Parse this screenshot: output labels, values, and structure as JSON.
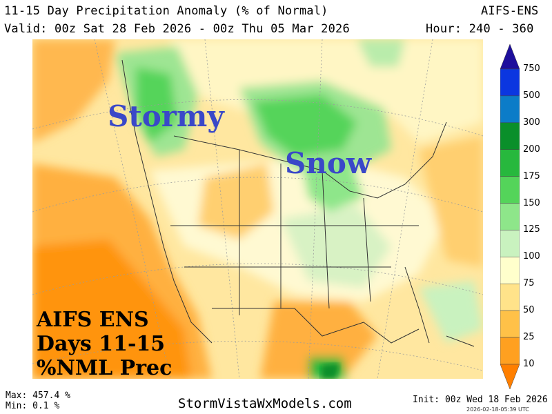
{
  "header": {
    "title": "11-15 Day Precipitation Anomaly (% of Normal)",
    "model": "AIFS-ENS",
    "valid": "Valid: 00z Sat 28 Feb 2026 - 00z Thu 05 Mar 2026",
    "hours": "Hour: 240 - 360"
  },
  "map": {
    "labels": {
      "stormy": "Stormy",
      "snow": "Snow",
      "line1": "AIFS ENS",
      "line2": "Days 11-15",
      "line3": "%NML Prec"
    }
  },
  "colorbar": {
    "ticks": [
      "750",
      "500",
      "300",
      "200",
      "175",
      "150",
      "125",
      "100",
      "75",
      "50",
      "25",
      "10"
    ],
    "colors": [
      "#1e0f9c",
      "#0b36e0",
      "#0c7cc8",
      "#0a8f2a",
      "#27b83d",
      "#54d45a",
      "#8ee68a",
      "#c9f2bf",
      "#ffffcc",
      "#ffe38a",
      "#ffc148",
      "#ffa020",
      "#ff7f00"
    ]
  },
  "footer": {
    "max": "Max: 457.4 %",
    "min": "Min: 0.1 %",
    "site": "StormVistaWxModels.com",
    "init": "Init: 00z Wed 18 Feb 2026",
    "stamp": "2026-02-18-05:39 UTC"
  }
}
